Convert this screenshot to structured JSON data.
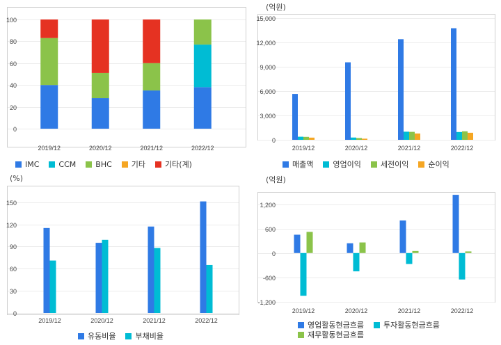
{
  "chart_data": [
    {
      "id": "chart1",
      "type": "bar",
      "stacked": true,
      "unit": "",
      "categories": [
        "2019/12",
        "2020/12",
        "2021/12",
        "2022/12"
      ],
      "ylim": [
        0,
        100
      ],
      "yticks": [
        "0",
        "20",
        "40",
        "60",
        "80",
        "100"
      ],
      "yticks_values": [
        0,
        20,
        40,
        60,
        80,
        100
      ],
      "grid": true,
      "legend_position": "bottom",
      "series": [
        {
          "name": "IMC",
          "color": "#2f7ae5",
          "values": [
            40,
            28,
            35,
            38
          ]
        },
        {
          "name": "CCM",
          "color": "#00bcd4",
          "values": [
            0,
            0,
            0,
            39
          ]
        },
        {
          "name": "BHC",
          "color": "#8bc34a",
          "values": [
            43,
            23,
            25,
            23
          ]
        },
        {
          "name": "기타",
          "color": "#f5a623",
          "values": [
            0,
            0,
            0,
            0
          ]
        },
        {
          "name": "기타(계)",
          "color": "#e53222",
          "values": [
            17,
            49,
            40,
            0
          ]
        }
      ]
    },
    {
      "id": "chart2",
      "type": "bar",
      "unit": "(억원)",
      "categories": [
        "2019/12",
        "2020/12",
        "2021/12",
        "2022/12"
      ],
      "ylim": [
        0,
        15000
      ],
      "yticks": [
        "0",
        "3,000",
        "6,000",
        "9,000",
        "12,000",
        "15,000"
      ],
      "yticks_values": [
        0,
        3000,
        6000,
        9000,
        12000,
        15000
      ],
      "grid": true,
      "legend_position": "bottom",
      "series": [
        {
          "name": "매출액",
          "color": "#2f7ae5",
          "values": [
            5650,
            9550,
            12400,
            13750
          ]
        },
        {
          "name": "영업이익",
          "color": "#00bcd4",
          "values": [
            380,
            280,
            1000,
            960
          ]
        },
        {
          "name": "세전이익",
          "color": "#8bc34a",
          "values": [
            360,
            220,
            980,
            1050
          ]
        },
        {
          "name": "순이익",
          "color": "#f5a623",
          "values": [
            270,
            140,
            780,
            870
          ]
        }
      ]
    },
    {
      "id": "chart3",
      "type": "bar",
      "unit": "(%)",
      "categories": [
        "2019/12",
        "2020/12",
        "2021/12",
        "2022/12"
      ],
      "ylim": [
        0,
        160
      ],
      "yticks": [
        "0",
        "30",
        "60",
        "90",
        "120",
        "150"
      ],
      "yticks_values": [
        0,
        30,
        60,
        90,
        120,
        150
      ],
      "grid": true,
      "legend_position": "bottom",
      "series": [
        {
          "name": "유동비율",
          "color": "#2f7ae5",
          "values": [
            115,
            95,
            117,
            151
          ]
        },
        {
          "name": "부채비율",
          "color": "#00bcd4",
          "values": [
            71,
            99,
            88,
            65
          ]
        }
      ]
    },
    {
      "id": "chart4",
      "type": "bar",
      "unit": "(억원)",
      "categories": [
        "2019/12",
        "2020/12",
        "2021/12",
        "2022/12"
      ],
      "ylim": [
        -1200,
        1500
      ],
      "yticks": [
        "-1,200",
        "-600",
        "0",
        "600",
        "1,200"
      ],
      "yticks_values": [
        -1200,
        -600,
        0,
        600,
        1200
      ],
      "grid": true,
      "legend_position": "bottom",
      "series": [
        {
          "name": "영업활동현금흐름",
          "color": "#2f7ae5",
          "values": [
            450,
            240,
            800,
            1430
          ]
        },
        {
          "name": "투자활동현금흐름",
          "color": "#00bcd4",
          "values": [
            -1050,
            -450,
            -270,
            -650
          ]
        },
        {
          "name": "재무활동현금흐름",
          "color": "#8bc34a",
          "values": [
            520,
            260,
            50,
            40
          ]
        }
      ]
    }
  ]
}
